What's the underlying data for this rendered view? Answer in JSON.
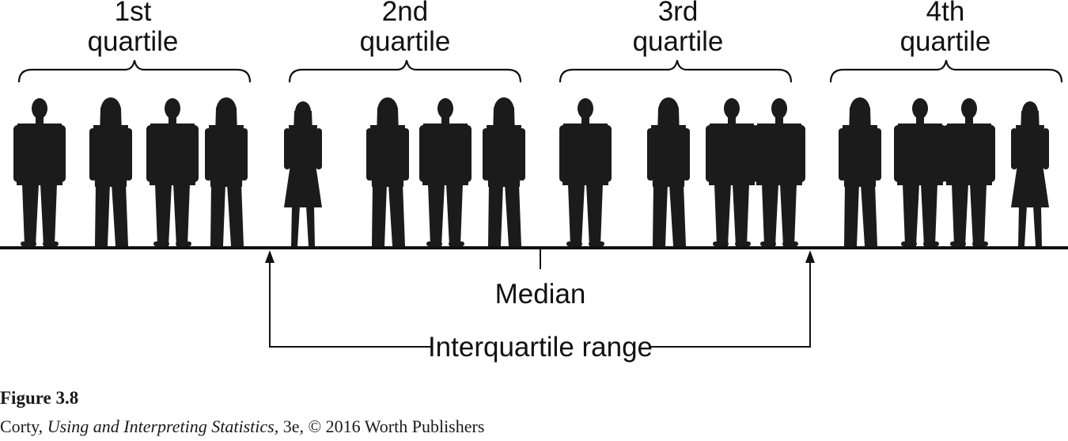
{
  "quartiles": [
    {
      "line1": "1st",
      "line2": "quartile"
    },
    {
      "line1": "2nd",
      "line2": "quartile"
    },
    {
      "line1": "3rd",
      "line2": "quartile"
    },
    {
      "line1": "4th",
      "line2": "quartile"
    }
  ],
  "median_label": "Median",
  "iqr_label": "Interquartile range",
  "figure_label": "Figure 3.8",
  "credit": {
    "author": "Corty,",
    "book_title": "Using and Interpreting Statistics,",
    "rest": "3e, © 2016 Worth Publishers"
  },
  "colors": {
    "ink": "#111111",
    "silhouette": "#1b1b1b",
    "background": "#ffffff"
  },
  "people": [
    {
      "quartile": 1,
      "type": "man"
    },
    {
      "quartile": 1,
      "type": "woman-pants"
    },
    {
      "quartile": 1,
      "type": "man"
    },
    {
      "quartile": 1,
      "type": "woman-pants"
    },
    {
      "quartile": 2,
      "type": "woman-dress"
    },
    {
      "quartile": 2,
      "type": "woman-pants"
    },
    {
      "quartile": 2,
      "type": "man"
    },
    {
      "quartile": 2,
      "type": "woman-pants"
    },
    {
      "quartile": 3,
      "type": "man"
    },
    {
      "quartile": 3,
      "type": "woman-pants"
    },
    {
      "quartile": 3,
      "type": "man"
    },
    {
      "quartile": 3,
      "type": "man"
    },
    {
      "quartile": 4,
      "type": "woman-pants"
    },
    {
      "quartile": 4,
      "type": "man"
    },
    {
      "quartile": 4,
      "type": "man"
    },
    {
      "quartile": 4,
      "type": "woman-dress"
    }
  ]
}
